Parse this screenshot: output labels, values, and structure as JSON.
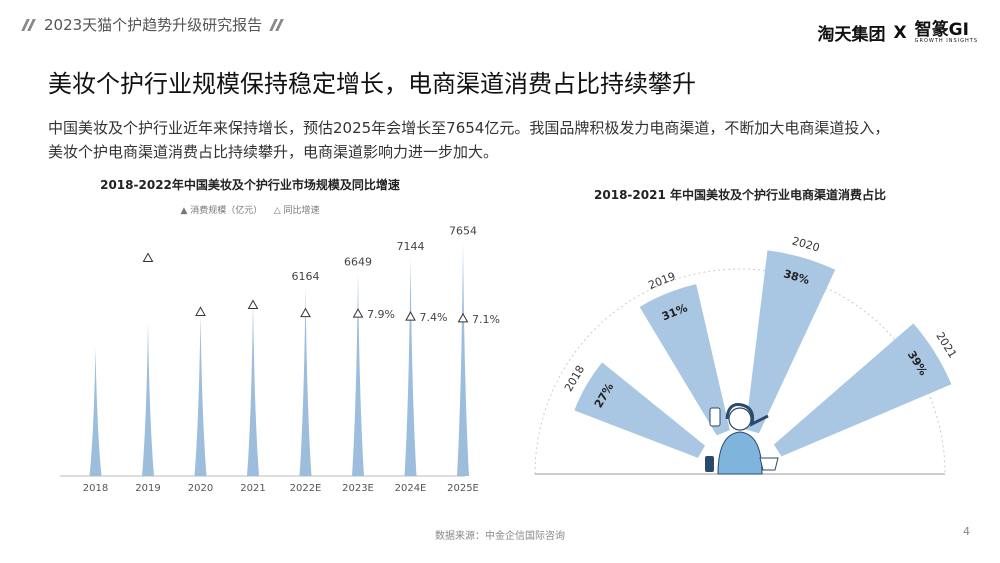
{
  "header": {
    "report_tag": "2023天猫个护趋势升级研究报告",
    "logo_left": "淘天集团",
    "logo_x": "X",
    "logo_right": "智篆GI",
    "logo_right_sub": "GROWTH INSIGHTS"
  },
  "page": {
    "title": "美妆个护行业规模保持稳定增长，电商渠道消费占比持续攀升",
    "desc_line1": "中国美妆及个护行业近年来保持增长，预估2025年会增长至7654亿元。我国品牌积极发力电商渠道，不断加大电商渠道投入，",
    "desc_line2": "美妆个护电商渠道消费占比持续攀升，电商渠道影响力进一步加大。",
    "source": "数据来源：中金企信国际咨询",
    "page_number": "4"
  },
  "chart_data": [
    {
      "type": "bar",
      "title": "2018-2022年中国美妆及个护行业市场规模及同比增速",
      "legend": {
        "bar": "消费规模（亿元）",
        "marker": "同比增速"
      },
      "categories": [
        "2018",
        "2019",
        "2020",
        "2021",
        "2022E",
        "2023E",
        "2024E",
        "2025E"
      ],
      "series": [
        {
          "name": "消费规模（亿元）",
          "values": [
            4200,
            5000,
            5300,
            5700,
            6164,
            6649,
            7144,
            7654
          ],
          "labels": [
            "",
            "",
            "",
            "",
            "6164",
            "6649",
            "7144",
            "7654"
          ]
        },
        {
          "name": "同比增速",
          "values": [
            null,
            17.5,
            8.2,
            9.4,
            8.0,
            7.9,
            7.4,
            7.1
          ],
          "labels": [
            "",
            "",
            "",
            "",
            "",
            "7.9%",
            "7.4%",
            "7.1%"
          ]
        }
      ],
      "ylim": [
        0,
        8000
      ],
      "colors": {
        "bar": "#9cbedc",
        "marker": "#333333"
      }
    },
    {
      "type": "pie",
      "title": "2018-2021 年中国美妆及个护行业电商渠道消费占比",
      "categories": [
        "2018",
        "2019",
        "2020",
        "2021"
      ],
      "values": [
        27,
        31,
        38,
        39
      ],
      "value_labels": [
        "27%",
        "31%",
        "38%",
        "39%"
      ],
      "colors": {
        "wedge": "#a9c6e2",
        "label": "#222222"
      }
    }
  ]
}
